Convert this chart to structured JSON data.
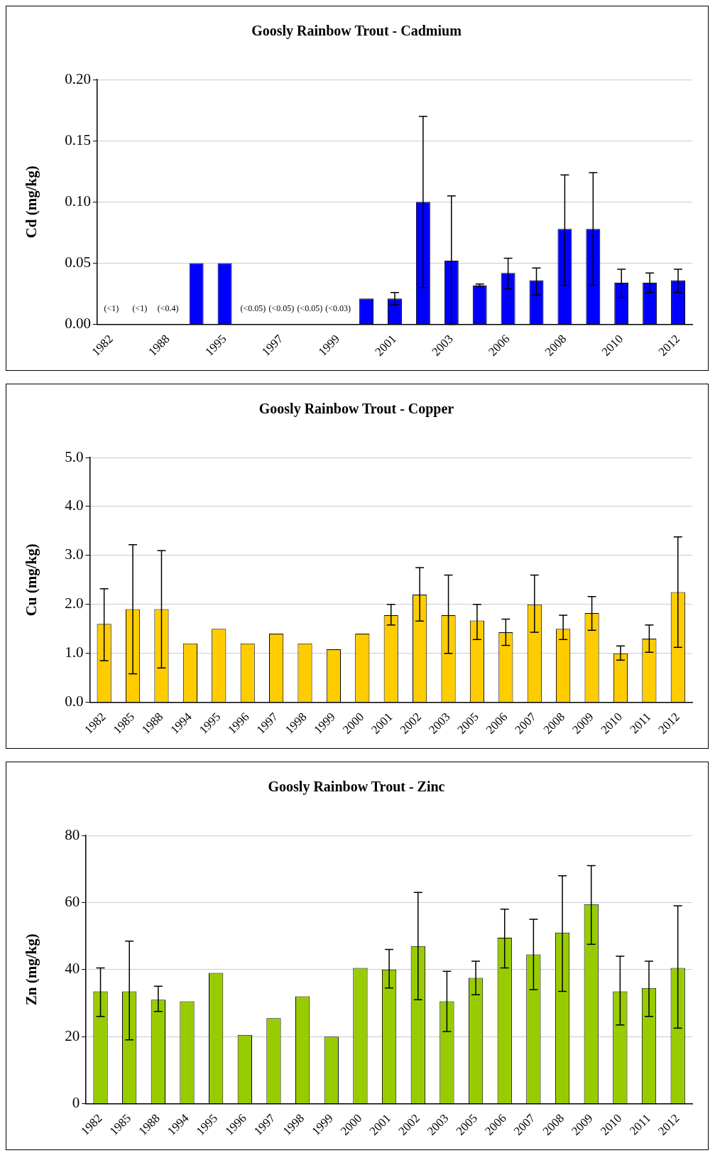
{
  "chart_data": [
    {
      "type": "bar",
      "title": "Goosly Rainbow Trout - Cadmium",
      "ylabel": "Cd (mg/kg)",
      "categories": [
        "1982",
        null,
        "1988",
        null,
        "1995",
        null,
        "1997",
        null,
        "1999",
        null,
        "2001",
        null,
        "2003",
        null,
        "2006",
        null,
        "2008",
        null,
        "2010",
        null,
        "2012"
      ],
      "values": [
        null,
        null,
        null,
        0.05,
        0.05,
        null,
        null,
        null,
        null,
        0.021,
        0.021,
        0.1,
        0.052,
        0.032,
        0.042,
        0.036,
        0.078,
        0.078,
        0.034,
        0.034,
        0.036
      ],
      "errors": [
        null,
        null,
        null,
        null,
        null,
        null,
        null,
        null,
        null,
        null,
        [
          0.016,
          0.026
        ],
        [
          0.03,
          0.17
        ],
        [
          0.0,
          0.105
        ],
        [
          0.031,
          0.033
        ],
        [
          0.029,
          0.054
        ],
        [
          0.024,
          0.046
        ],
        [
          0.032,
          0.122
        ],
        [
          0.032,
          0.124
        ],
        [
          0.022,
          0.045
        ],
        [
          0.026,
          0.042
        ],
        [
          0.026,
          0.045
        ]
      ],
      "color": "#0000ff",
      "ylim": [
        0,
        0.2
      ],
      "yticks": [
        {
          "value": 0,
          "label": "0.00"
        },
        {
          "value": 0.05,
          "label": "0.05"
        },
        {
          "value": 0.1,
          "label": "0.10"
        },
        {
          "value": 0.15,
          "label": "0.15"
        },
        {
          "value": 0.2,
          "label": "0.20"
        }
      ],
      "grid": "y",
      "annotations": [
        "(<1)",
        "(<1)",
        "(<0.4)",
        "(<0.05)",
        "(<0.05)",
        "(<0.05)",
        "(<0.03)"
      ]
    },
    {
      "type": "bar",
      "title": "Goosly Rainbow Trout - Copper",
      "ylabel": "Cu (mg/kg)",
      "categories": [
        "1982",
        "1985",
        "1988",
        "1994",
        "1995",
        "1996",
        "1997",
        "1998",
        "1999",
        "2000",
        "2001",
        "2002",
        "2003",
        "2005",
        "2006",
        "2007",
        "2008",
        "2009",
        "2010",
        "2011",
        "2012"
      ],
      "values": [
        1.6,
        1.9,
        1.9,
        1.2,
        1.5,
        1.2,
        1.4,
        1.2,
        1.08,
        1.4,
        1.78,
        2.2,
        1.78,
        1.67,
        1.43,
        2.0,
        1.5,
        1.82,
        1.0,
        1.3,
        2.25
      ],
      "errors": [
        [
          0.85,
          2.32
        ],
        [
          0.58,
          3.22
        ],
        [
          0.7,
          3.1
        ],
        null,
        null,
        null,
        null,
        null,
        null,
        null,
        [
          1.58,
          2.0
        ],
        [
          1.66,
          2.75
        ],
        [
          1.0,
          2.6
        ],
        [
          1.28,
          2.0
        ],
        [
          1.16,
          1.7
        ],
        [
          1.43,
          2.6
        ],
        [
          1.28,
          1.78
        ],
        [
          1.47,
          2.16
        ],
        [
          0.86,
          1.15
        ],
        [
          1.02,
          1.58
        ],
        [
          1.12,
          3.38
        ]
      ],
      "color": "#ffcc00",
      "ylim": [
        0,
        5
      ],
      "yticks": [
        {
          "value": 0,
          "label": "0.0"
        },
        {
          "value": 1,
          "label": "1.0"
        },
        {
          "value": 2,
          "label": "2.0"
        },
        {
          "value": 3,
          "label": "3.0"
        },
        {
          "value": 4,
          "label": "4.0"
        },
        {
          "value": 5,
          "label": "5.0"
        }
      ],
      "grid": "y"
    },
    {
      "type": "bar",
      "title": "Goosly Rainbow Trout - Zinc",
      "ylabel": "Zn (mg/kg)",
      "categories": [
        "1982",
        "1985",
        "1988",
        "1994",
        "1995",
        "1996",
        "1997",
        "1998",
        "1999",
        "2000",
        "2001",
        "2002",
        "2003",
        "2005",
        "2006",
        "2007",
        "2008",
        "2009",
        "2010",
        "2011",
        "2012"
      ],
      "values": [
        33.5,
        33.5,
        31,
        30.5,
        39,
        20.5,
        25.5,
        32,
        20,
        40.5,
        40,
        47,
        30.5,
        37.5,
        49.5,
        44.5,
        51,
        59.5,
        33.5,
        34.5,
        40.5
      ],
      "errors": [
        [
          26,
          40.5
        ],
        [
          19,
          48.5
        ],
        [
          27.5,
          35
        ],
        null,
        null,
        null,
        null,
        null,
        null,
        null,
        [
          34.5,
          46
        ],
        [
          31,
          63
        ],
        [
          21.5,
          39.5
        ],
        [
          32.5,
          42.5
        ],
        [
          40.5,
          58
        ],
        [
          34,
          55
        ],
        [
          33.5,
          68
        ],
        [
          47.5,
          71
        ],
        [
          23.5,
          44
        ],
        [
          26,
          42.5
        ],
        [
          22.5,
          59
        ]
      ],
      "color": "#99cc00",
      "ylim": [
        0,
        80
      ],
      "yticks": [
        0,
        20,
        40,
        60,
        80
      ],
      "grid": "y"
    }
  ]
}
